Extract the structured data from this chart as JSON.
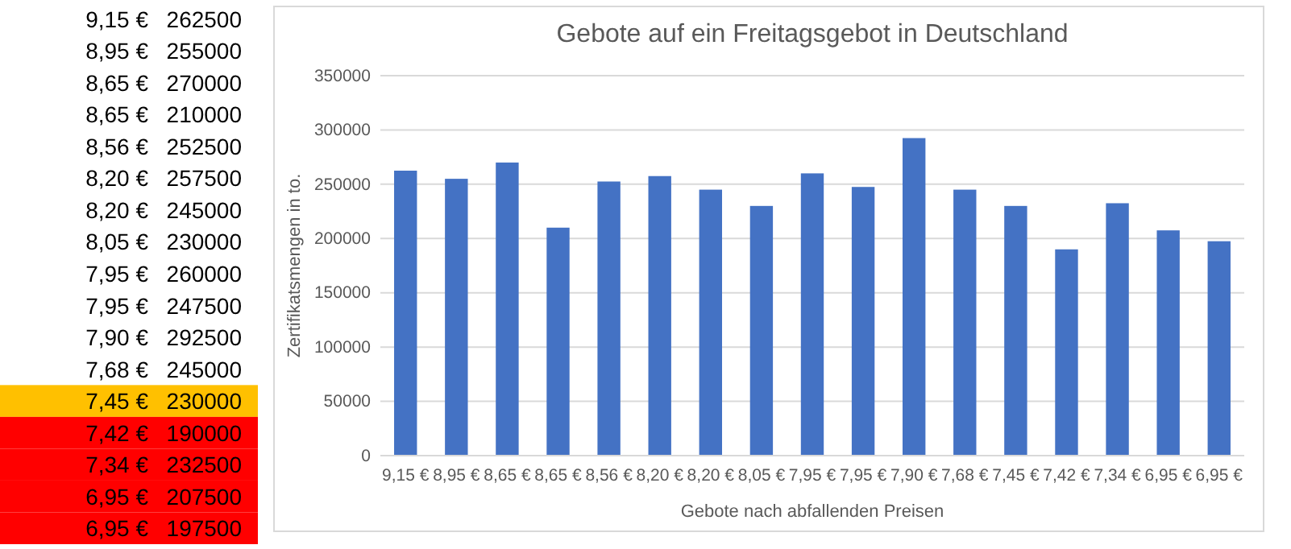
{
  "chart_data": [
    {
      "type": "other",
      "annotations": [
        "9,15 €",
        "262500",
        "8,95 €",
        "255000",
        "8,65 €",
        "270000",
        "8,65 €",
        "210000",
        "8,56 €",
        "252500",
        "8,20 €",
        "257500",
        "8,20 €",
        "245000",
        "8,05 €",
        "230000",
        "7,95 €",
        "260000",
        "7,95 €",
        "247500",
        "7,90 €",
        "292500",
        "7,68 €",
        "245000",
        "7,45 €",
        "230000",
        "7,42 €",
        "190000",
        "7,34 €",
        "232500",
        "6,95 €",
        "207500",
        "6,95 €",
        "197500"
      ]
    },
    {
      "type": "bar",
      "title": "Gebote auf ein Freitagsgebot in Deutschland",
      "xlabel": "Gebote  nach abfallenden Preisen",
      "ylabel": "Zertifikatsmengen in to.",
      "categories": [
        "9,15 €",
        "8,95 €",
        "8,65 €",
        "8,65 €",
        "8,56 €",
        "8,20 €",
        "8,20 €",
        "8,05 €",
        "7,95 €",
        "7,95 €",
        "7,90 €",
        "7,68 €",
        "7,45 €",
        "7,42 €",
        "7,34 €",
        "6,95 €",
        "6,95 €"
      ],
      "values": [
        262500,
        255000,
        270000,
        210000,
        252500,
        257500,
        245000,
        230000,
        260000,
        247500,
        292500,
        245000,
        230000,
        190000,
        232500,
        207500,
        197500
      ],
      "color": "#4472c4",
      "ylim": [
        0,
        350000
      ],
      "yticks": [
        0,
        50000,
        100000,
        150000,
        200000,
        250000,
        300000,
        350000
      ],
      "grid": "y"
    }
  ]
}
